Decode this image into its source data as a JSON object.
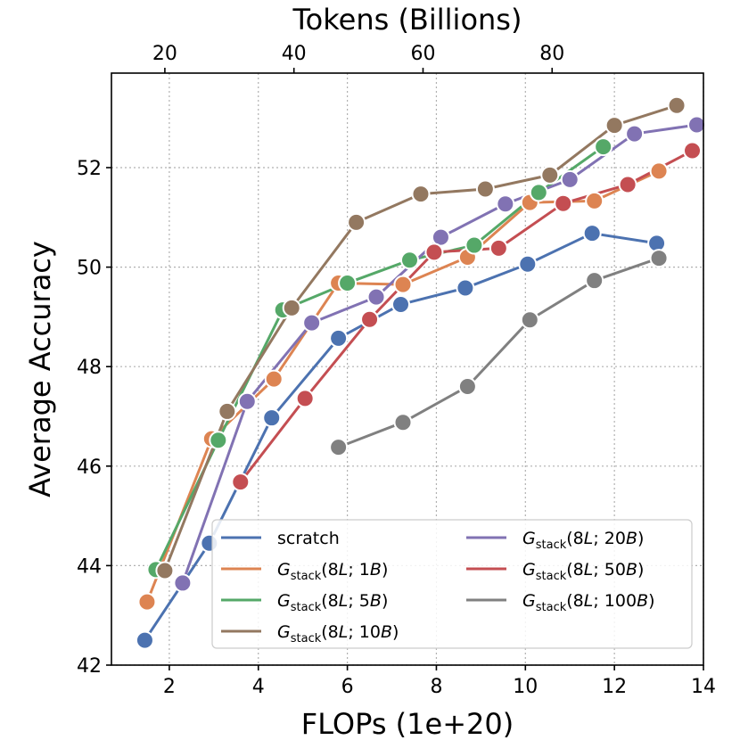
{
  "chart_data": {
    "type": "line",
    "xlabel": "FLOPs (1e+20)",
    "ylabel": "Average Accuracy",
    "top_xlabel": "Tokens (Billions)",
    "xlim": [
      0.7,
      14
    ],
    "ylim": [
      42,
      53.9
    ],
    "xticks": [
      2,
      4,
      6,
      8,
      10,
      12,
      14
    ],
    "yticks": [
      42,
      44,
      46,
      48,
      50,
      52
    ],
    "top_xticks": [
      {
        "label": "20",
        "flops": 1.9
      },
      {
        "label": "40",
        "flops": 4.8
      },
      {
        "label": "60",
        "flops": 7.7
      },
      {
        "label": "80",
        "flops": 10.6
      }
    ],
    "grid": true,
    "legend_position": "lower-right",
    "series": [
      {
        "name": "scratch",
        "color": "#4c72b0",
        "x": [
          1.45,
          2.9,
          4.3,
          5.8,
          7.2,
          8.65,
          10.05,
          11.5,
          12.95
        ],
        "y": [
          42.5,
          44.45,
          46.97,
          48.57,
          49.25,
          49.58,
          50.06,
          50.68,
          50.48
        ]
      },
      {
        "name": "G",
        "sub": "stack",
        "args": "(8L; 1B)",
        "color": "#dd8452",
        "x": [
          1.5,
          2.95,
          4.35,
          5.8,
          7.25,
          8.7,
          10.1,
          11.55,
          13.0
        ],
        "y": [
          43.27,
          46.55,
          47.75,
          49.68,
          49.65,
          50.2,
          51.3,
          51.33,
          51.93
        ]
      },
      {
        "name": "G",
        "sub": "stack",
        "args": "(8L; 5B)",
        "color": "#55a868",
        "x": [
          1.7,
          3.1,
          4.55,
          6.0,
          7.4,
          8.85,
          10.3,
          11.75
        ],
        "y": [
          43.92,
          46.52,
          49.14,
          49.68,
          50.14,
          50.44,
          51.5,
          52.42
        ]
      },
      {
        "name": "G",
        "sub": "stack",
        "args": "(8L; 10B)",
        "color": "#937860",
        "x": [
          1.9,
          3.3,
          4.75,
          6.2,
          7.65,
          9.1,
          10.55,
          12.0,
          13.4
        ],
        "y": [
          43.9,
          47.1,
          49.18,
          50.9,
          51.47,
          51.57,
          51.85,
          52.85,
          53.25
        ]
      },
      {
        "name": "G",
        "sub": "stack",
        "args": "(8L; 20B)",
        "color": "#8172b3",
        "x": [
          2.3,
          3.75,
          5.2,
          6.65,
          8.1,
          9.55,
          11.0,
          12.45,
          13.85
        ],
        "y": [
          43.65,
          47.3,
          48.88,
          49.4,
          50.6,
          51.27,
          51.76,
          52.68,
          52.86
        ]
      },
      {
        "name": "G",
        "sub": "stack",
        "args": "(8L; 50B)",
        "color": "#c44e52",
        "x": [
          3.6,
          5.05,
          6.5,
          7.95,
          9.4,
          10.85,
          12.3,
          13.75
        ],
        "y": [
          45.68,
          47.36,
          48.95,
          50.3,
          50.38,
          51.28,
          51.66,
          52.34
        ]
      },
      {
        "name": "G",
        "sub": "stack",
        "args": "(8L; 100B)",
        "color": "#808080",
        "x": [
          5.8,
          7.25,
          8.7,
          10.1,
          11.55,
          13.0
        ],
        "y": [
          46.38,
          46.88,
          47.6,
          48.94,
          49.73,
          50.18
        ]
      }
    ],
    "legend_columns": [
      [
        0,
        1,
        2,
        3
      ],
      [
        4,
        5,
        6
      ]
    ]
  }
}
